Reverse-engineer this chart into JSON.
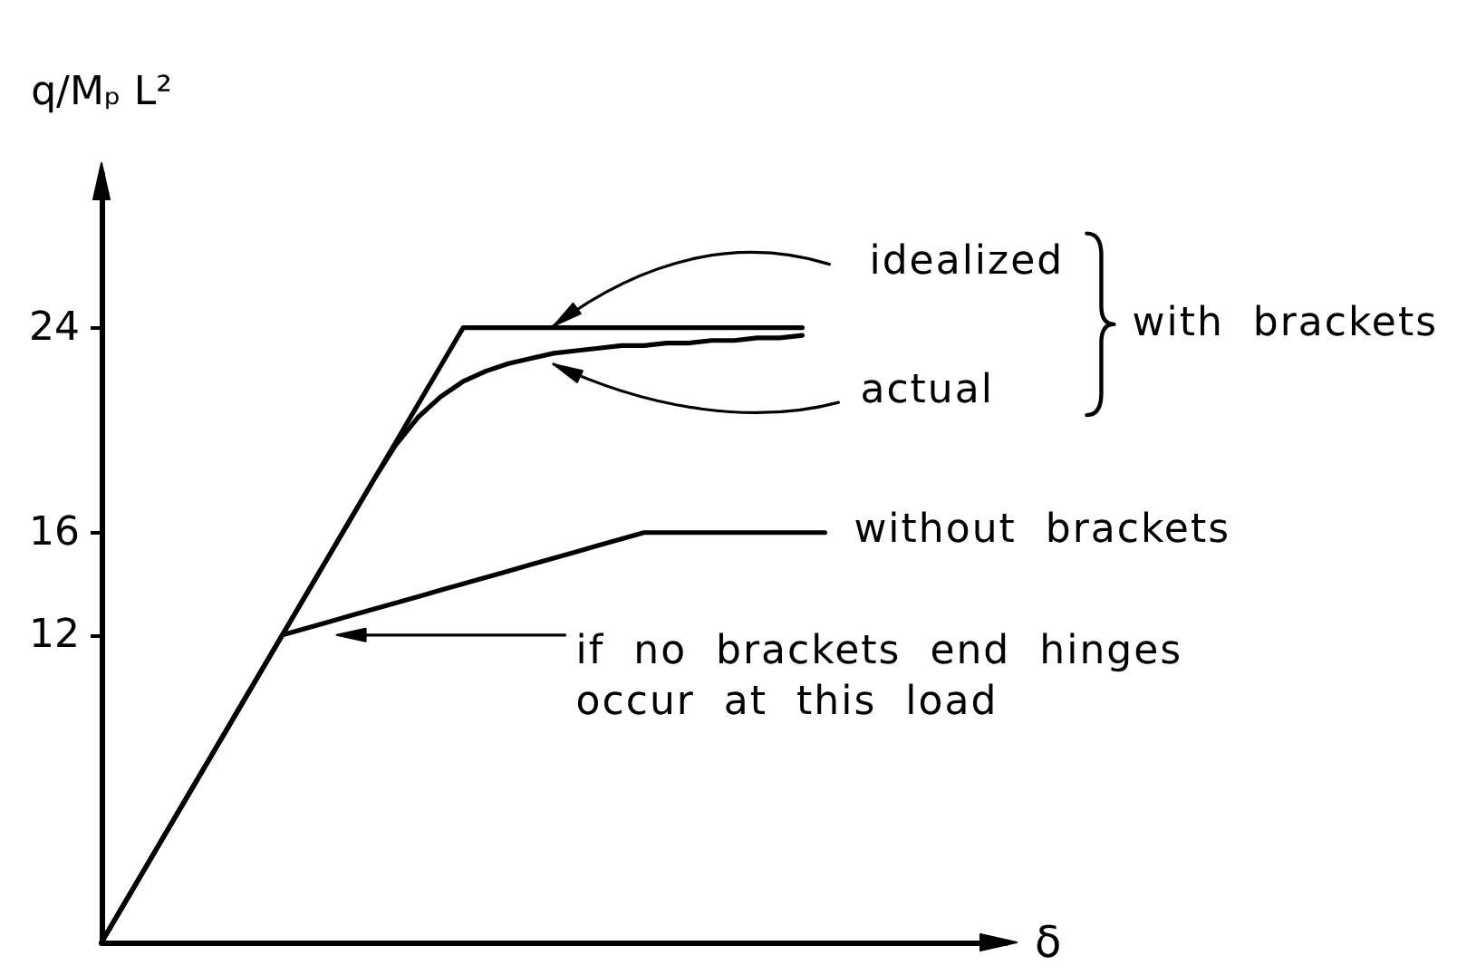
{
  "chart_data": {
    "type": "line",
    "xlabel": "δ",
    "ylabel": "q/Mₚ L²",
    "categories": [
      null,
      null,
      null,
      null,
      null,
      null,
      null,
      null,
      null,
      null,
      null,
      null,
      null,
      null,
      null,
      null,
      null,
      null,
      null,
      null,
      null,
      null,
      null,
      null,
      null,
      null,
      null,
      null,
      null,
      null,
      null,
      null,
      null,
      null,
      null,
      null,
      null,
      null,
      null,
      null,
      null
    ],
    "series": [
      {
        "name": "idealized",
        "color": "#000000",
        "values": [
          0,
          1.5,
          3,
          4.5,
          6,
          7.5,
          9,
          10.5,
          12,
          13.5,
          15,
          16.5,
          18,
          19.5,
          21,
          22.5,
          24,
          24,
          24,
          24,
          24,
          24,
          24,
          24,
          24,
          24,
          24,
          24,
          24,
          24,
          24,
          24,
          null,
          null,
          null,
          null,
          null,
          null,
          null,
          null,
          null
        ]
      },
      {
        "name": "actual",
        "color": "#000000",
        "values": [
          0,
          1.5,
          3,
          4.5,
          6,
          7.5,
          9,
          10.5,
          12,
          13.5,
          15,
          16.5,
          18,
          19.4,
          20.5,
          21.3,
          21.9,
          22.3,
          22.6,
          22.8,
          23.0,
          23.1,
          23.2,
          23.3,
          23.3,
          23.4,
          23.4,
          23.5,
          23.5,
          23.6,
          23.6,
          23.7,
          null,
          null,
          null,
          null,
          null,
          null,
          null,
          null,
          null
        ]
      },
      {
        "name": "without brackets",
        "color": "#000000",
        "values": [
          0,
          1.5,
          3,
          4.5,
          6,
          7.5,
          9,
          10.5,
          12,
          12.25,
          12.5,
          12.75,
          13,
          13.25,
          13.5,
          13.75,
          14,
          14.25,
          14.5,
          14.75,
          15,
          15.25,
          15.5,
          15.75,
          16,
          16,
          16,
          16,
          16,
          16,
          16,
          16,
          16,
          null,
          null,
          null,
          null,
          null,
          null,
          null,
          null
        ]
      }
    ],
    "ylim": [
      0,
      30
    ],
    "yticks": [
      12,
      16,
      24
    ],
    "tick_labels": "y",
    "marker": "none",
    "line_style": "solid",
    "annotations": [
      "with brackets",
      "if no brackets end hinges\noccur at this load"
    ]
  }
}
